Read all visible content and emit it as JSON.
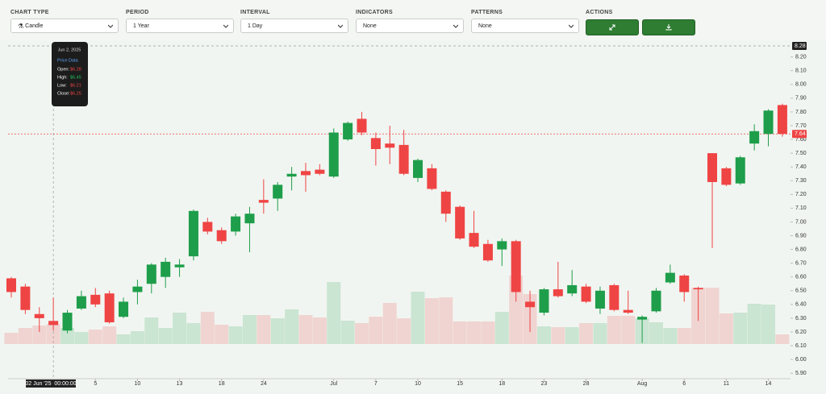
{
  "toolbar": {
    "controls": [
      {
        "label": "CHART TYPE",
        "value": "Candle"
      },
      {
        "label": "PERIOD",
        "value": "1 Year"
      },
      {
        "label": "INTERVAL",
        "value": "1 Day"
      },
      {
        "label": "INDICATORS",
        "value": "None"
      },
      {
        "label": "PATTERNS",
        "value": "None"
      }
    ],
    "actions_label": "ACTIONS"
  },
  "chart_data": {
    "type": "candlestick",
    "categories": [
      null,
      null,
      null,
      null,
      null,
      null,
      "5",
      null,
      null,
      "10",
      null,
      null,
      "13",
      null,
      null,
      "18",
      null,
      null,
      "24",
      null,
      null,
      null,
      null,
      "Jul",
      null,
      null,
      "7",
      null,
      null,
      "10",
      null,
      null,
      "15",
      null,
      null,
      "18",
      null,
      null,
      "23",
      null,
      null,
      "28",
      null,
      null,
      null,
      "Aug",
      null,
      null,
      "6",
      null,
      null,
      "11",
      null,
      null,
      "14",
      null
    ],
    "open": [
      6.59,
      6.53,
      6.33,
      6.28,
      6.21,
      6.37,
      6.47,
      6.48,
      6.31,
      6.49,
      6.55,
      6.6,
      6.67,
      6.75,
      7.0,
      6.94,
      6.93,
      6.99,
      7.16,
      7.17,
      7.33,
      7.37,
      7.38,
      7.33,
      7.6,
      7.75,
      7.61,
      7.57,
      7.56,
      7.32,
      7.39,
      7.22,
      7.11,
      6.92,
      6.84,
      6.8,
      6.86,
      6.42,
      6.34,
      6.51,
      6.48,
      6.53,
      6.37,
      6.54,
      6.36,
      6.29,
      6.35,
      6.56,
      6.61,
      6.52,
      7.5,
      7.39,
      7.28,
      7.57,
      7.64,
      7.85
    ],
    "high": [
      6.6,
      6.55,
      6.38,
      6.45,
      6.36,
      6.5,
      6.52,
      6.5,
      6.45,
      6.58,
      6.7,
      6.74,
      6.73,
      7.09,
      7.03,
      6.96,
      7.06,
      7.11,
      7.31,
      7.29,
      7.4,
      7.43,
      7.42,
      7.68,
      7.73,
      7.8,
      7.65,
      7.7,
      7.67,
      7.46,
      7.42,
      7.23,
      7.12,
      7.08,
      6.87,
      6.88,
      6.87,
      6.5,
      6.52,
      6.71,
      6.65,
      6.55,
      6.53,
      6.55,
      6.5,
      6.32,
      6.52,
      6.69,
      6.62,
      6.53,
      7.5,
      7.4,
      7.48,
      7.71,
      7.82,
      7.86
    ],
    "low": [
      6.45,
      6.33,
      6.2,
      6.21,
      6.19,
      6.36,
      6.38,
      6.26,
      6.3,
      6.4,
      6.48,
      6.52,
      6.6,
      6.72,
      6.91,
      6.84,
      6.9,
      6.78,
      7.06,
      7.08,
      7.23,
      7.22,
      7.34,
      7.32,
      7.59,
      7.63,
      7.41,
      7.42,
      7.34,
      7.29,
      7.23,
      7.0,
      6.87,
      6.81,
      6.71,
      6.68,
      6.42,
      6.2,
      6.32,
      6.45,
      6.46,
      6.41,
      6.33,
      6.35,
      6.33,
      6.12,
      6.34,
      6.55,
      6.42,
      6.28,
      6.81,
      7.26,
      7.27,
      7.52,
      7.55,
      7.62
    ],
    "close": [
      6.49,
      6.36,
      6.3,
      6.25,
      6.34,
      6.46,
      6.4,
      6.27,
      6.42,
      6.53,
      6.69,
      6.71,
      6.69,
      7.08,
      6.93,
      6.86,
      7.04,
      7.06,
      7.14,
      7.27,
      7.35,
      7.34,
      7.35,
      7.65,
      7.72,
      7.65,
      7.53,
      7.54,
      7.35,
      7.45,
      7.24,
      7.06,
      6.88,
      6.82,
      6.72,
      6.86,
      6.49,
      6.38,
      6.51,
      6.46,
      6.54,
      6.42,
      6.5,
      6.36,
      6.34,
      6.31,
      6.5,
      6.63,
      6.49,
      6.51,
      7.29,
      7.27,
      7.47,
      7.66,
      7.81,
      7.64
    ],
    "volume": [
      14,
      20,
      23,
      25,
      20,
      15,
      18,
      22,
      12,
      16,
      33,
      20,
      39,
      26,
      40,
      24,
      22,
      36,
      36,
      32,
      43,
      36,
      33,
      77,
      29,
      26,
      34,
      51,
      32,
      65,
      57,
      58,
      28,
      28,
      28,
      40,
      85,
      62,
      22,
      21,
      21,
      26,
      26,
      35,
      35,
      32,
      27,
      20,
      20,
      70,
      70,
      38,
      39,
      50,
      49,
      12
    ],
    "up_color": "#1e9e4a",
    "down_color": "#ef4444",
    "ylim": [
      5.86,
      8.28
    ],
    "yticks": [
      {
        "value": 5.9,
        "label": "5.90"
      },
      {
        "value": 6.0,
        "label": "6.00"
      },
      {
        "value": 6.1,
        "label": "6.10"
      },
      {
        "value": 6.2,
        "label": "6.20"
      },
      {
        "value": 6.3,
        "label": "6.30"
      },
      {
        "value": 6.4,
        "label": "6.40"
      },
      {
        "value": 6.5,
        "label": "6.50"
      },
      {
        "value": 6.6,
        "label": "6.60"
      },
      {
        "value": 6.7,
        "label": "6.70"
      },
      {
        "value": 6.8,
        "label": "6.80"
      },
      {
        "value": 6.9,
        "label": "6.90"
      },
      {
        "value": 7.0,
        "label": "7.00"
      },
      {
        "value": 7.1,
        "label": "7.10"
      },
      {
        "value": 7.2,
        "label": "7.20"
      },
      {
        "value": 7.3,
        "label": "7.30"
      },
      {
        "value": 7.4,
        "label": "7.40"
      },
      {
        "value": 7.5,
        "label": "7.50"
      },
      {
        "value": 7.6,
        "label": "7.60"
      },
      {
        "value": 7.7,
        "label": "7.70"
      },
      {
        "value": 7.8,
        "label": "7.80"
      },
      {
        "value": 7.9,
        "label": "7.90"
      },
      {
        "value": 8.0,
        "label": "8.00"
      },
      {
        "value": 8.1,
        "label": "8.10"
      },
      {
        "value": 8.2,
        "label": "8.20"
      }
    ],
    "crosshair_price": 8.28,
    "last_price": 7.64,
    "crosshair_x_label": "02 Jun '25  00:00:00",
    "tooltip": {
      "date": "Jun 2, 2025",
      "heading": "Price Data",
      "rows": [
        {
          "label": "Open:",
          "value": "$6.28",
          "color": "#ef4444"
        },
        {
          "label": "High:",
          "value": "$6.45",
          "color": "#22c55e"
        },
        {
          "label": "Low:",
          "value": "$6.21",
          "color": "#ef4444"
        },
        {
          "label": "Close:",
          "value": "$6.25",
          "color": "#ef4444"
        }
      ]
    }
  }
}
